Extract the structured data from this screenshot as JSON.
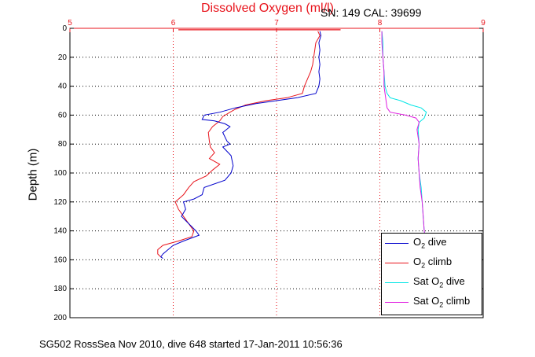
{
  "title": "Dissolved Oxygen (ml/l)",
  "serial_info": "SN: 149  CAL: 39699",
  "footer": "SG502 RossSea Nov 2010, dive 648 started 17-Jan-2011 10:56:36",
  "colors": {
    "title": "#e8141c",
    "o2_dive": "#0000cc",
    "o2_climb": "#e8141c",
    "sat_dive": "#00e5e5",
    "sat_climb": "#e01ee0"
  },
  "legend": {
    "o2_dive": {
      "prefix": "O",
      "sub": "2",
      "suffix": " dive"
    },
    "o2_climb": {
      "prefix": "O",
      "sub": "2",
      "suffix": " climb"
    },
    "sat_dive": {
      "prefix": "Sat O",
      "sub": "2",
      "suffix": " dive"
    },
    "sat_climb": {
      "prefix": "Sat O",
      "sub": "2",
      "suffix": " climb"
    }
  },
  "chart_data": {
    "type": "line",
    "title": "Dissolved Oxygen (ml/l)",
    "ylabel": "Depth (m)",
    "xlabel": "",
    "xlim": [
      5,
      9
    ],
    "ylim": [
      0,
      200
    ],
    "y_reversed": true,
    "x_ticks": [
      "5",
      "6",
      "7",
      "8",
      "9"
    ],
    "y_ticks": [
      "0",
      "20",
      "40",
      "60",
      "80",
      "100",
      "120",
      "140",
      "160",
      "180",
      "200"
    ],
    "grid": true,
    "legend_position": "bottom-right",
    "series": [
      {
        "name": "O2 dive",
        "points": [
          [
            7.42,
            2
          ],
          [
            7.43,
            5
          ],
          [
            7.41,
            10
          ],
          [
            7.42,
            15
          ],
          [
            7.41,
            20
          ],
          [
            7.42,
            25
          ],
          [
            7.41,
            30
          ],
          [
            7.42,
            35
          ],
          [
            7.41,
            40
          ],
          [
            7.38,
            45
          ],
          [
            7.2,
            48
          ],
          [
            7.0,
            50
          ],
          [
            6.8,
            52
          ],
          [
            6.6,
            55
          ],
          [
            6.45,
            58
          ],
          [
            6.3,
            60
          ],
          [
            6.28,
            63
          ],
          [
            6.4,
            64
          ],
          [
            6.5,
            66
          ],
          [
            6.55,
            68
          ],
          [
            6.48,
            72
          ],
          [
            6.52,
            78
          ],
          [
            6.55,
            80
          ],
          [
            6.48,
            82
          ],
          [
            6.56,
            88
          ],
          [
            6.58,
            95
          ],
          [
            6.56,
            100
          ],
          [
            6.5,
            105
          ],
          [
            6.3,
            110
          ],
          [
            6.28,
            115
          ],
          [
            6.2,
            118
          ],
          [
            6.1,
            120
          ],
          [
            6.12,
            125
          ],
          [
            6.08,
            130
          ],
          [
            6.15,
            135
          ],
          [
            6.22,
            140
          ],
          [
            6.25,
            143
          ],
          [
            6.1,
            147
          ],
          [
            6.0,
            150
          ],
          [
            5.95,
            153
          ],
          [
            5.9,
            156
          ],
          [
            5.88,
            158
          ],
          [
            5.9,
            159
          ]
        ]
      },
      {
        "name": "O2 climb",
        "points": [
          [
            7.4,
            2
          ],
          [
            7.42,
            5
          ],
          [
            7.38,
            10
          ],
          [
            7.37,
            15
          ],
          [
            7.36,
            20
          ],
          [
            7.35,
            25
          ],
          [
            7.33,
            30
          ],
          [
            7.3,
            35
          ],
          [
            7.27,
            40
          ],
          [
            7.25,
            45
          ],
          [
            7.1,
            48
          ],
          [
            6.9,
            50
          ],
          [
            6.7,
            53
          ],
          [
            6.6,
            56
          ],
          [
            6.55,
            58
          ],
          [
            6.48,
            61
          ],
          [
            6.45,
            64
          ],
          [
            6.38,
            68
          ],
          [
            6.34,
            72
          ],
          [
            6.35,
            78
          ],
          [
            6.36,
            82
          ],
          [
            6.4,
            86
          ],
          [
            6.35,
            90
          ],
          [
            6.45,
            94
          ],
          [
            6.38,
            98
          ],
          [
            6.32,
            102
          ],
          [
            6.2,
            106
          ],
          [
            6.15,
            110
          ],
          [
            6.1,
            115
          ],
          [
            6.02,
            120
          ],
          [
            6.05,
            125
          ],
          [
            6.1,
            130
          ],
          [
            6.15,
            135
          ],
          [
            6.2,
            140
          ],
          [
            6.18,
            144
          ],
          [
            6.05,
            147
          ],
          [
            5.9,
            150
          ],
          [
            5.85,
            153
          ],
          [
            5.85,
            156
          ],
          [
            5.88,
            158
          ]
        ]
      },
      {
        "name": "Sat O2 dive",
        "points": [
          [
            8.02,
            2
          ],
          [
            8.03,
            10
          ],
          [
            8.03,
            20
          ],
          [
            8.04,
            30
          ],
          [
            8.05,
            40
          ],
          [
            8.07,
            45
          ],
          [
            8.1,
            48
          ],
          [
            8.2,
            50
          ],
          [
            8.3,
            53
          ],
          [
            8.4,
            55
          ],
          [
            8.45,
            58
          ],
          [
            8.43,
            62
          ],
          [
            8.38,
            65
          ],
          [
            8.37,
            70
          ],
          [
            8.38,
            80
          ],
          [
            8.37,
            90
          ],
          [
            8.38,
            100
          ],
          [
            8.4,
            110
          ],
          [
            8.41,
            120
          ],
          [
            8.42,
            130
          ],
          [
            8.43,
            140
          ],
          [
            8.44,
            145
          ]
        ]
      },
      {
        "name": "Sat O2 climb",
        "points": [
          [
            8.02,
            2
          ],
          [
            8.02,
            10
          ],
          [
            8.03,
            20
          ],
          [
            8.04,
            30
          ],
          [
            8.04,
            40
          ],
          [
            8.05,
            45
          ],
          [
            8.06,
            50
          ],
          [
            8.07,
            55
          ],
          [
            8.1,
            58
          ],
          [
            8.25,
            60
          ],
          [
            8.35,
            62
          ],
          [
            8.38,
            65
          ],
          [
            8.36,
            70
          ],
          [
            8.38,
            80
          ],
          [
            8.37,
            90
          ],
          [
            8.38,
            100
          ],
          [
            8.39,
            110
          ],
          [
            8.41,
            120
          ],
          [
            8.42,
            130
          ],
          [
            8.43,
            140
          ],
          [
            8.44,
            145
          ]
        ]
      }
    ]
  }
}
